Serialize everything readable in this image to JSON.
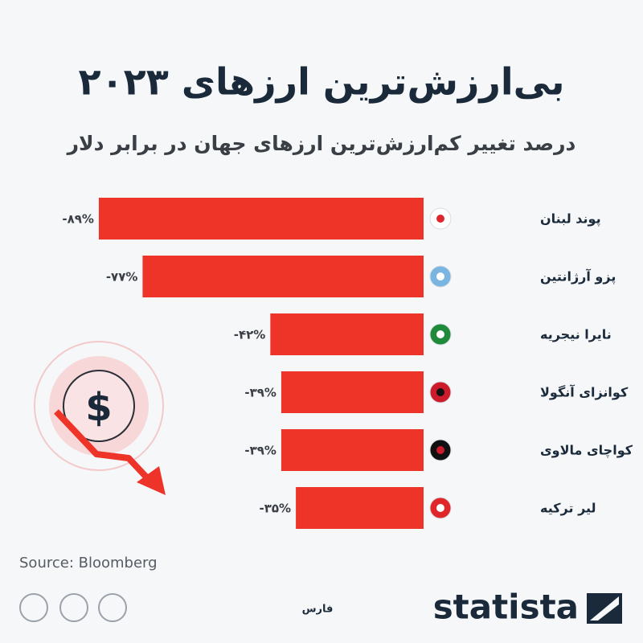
{
  "chart_data": {
    "type": "bar",
    "orientation": "horizontal",
    "title": "بی‌ارزش‌ترین ارزهای ۲۰۲۳",
    "subtitle": "درصد تغییر کم‌ارزش‌ترین ارزهای جهان در برابر دلار",
    "categories": [
      "پوند لبنان",
      "پزو آرژانتین",
      "نایرا نیجریه",
      "کوانزای آنگولا",
      "کواچای مالاوی",
      "لیر ترکیه"
    ],
    "values": [
      -89,
      -77,
      -42,
      -39,
      -39,
      -35
    ],
    "value_labels": [
      "-۸۹%",
      "-۷۷%",
      "-۴۲%",
      "-۳۹%",
      "-۳۹%",
      "-۳۵%"
    ],
    "color": "#ee3329",
    "source": "Source: Bloomberg"
  },
  "footer": {
    "brand": "statista",
    "partner": "فارس"
  }
}
